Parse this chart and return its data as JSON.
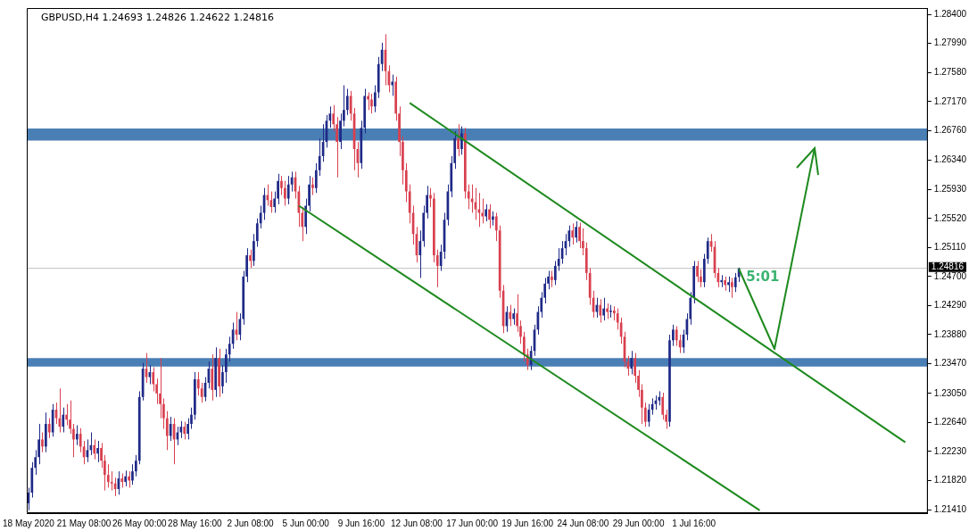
{
  "chart_data": {
    "type": "candlestick",
    "title": "GBPUSD,H4 1.24693 1.24826 1.24622 1.24816",
    "categories": [
      "18 May 2020",
      null,
      null,
      null,
      null,
      null,
      null,
      null,
      null,
      null,
      null,
      null,
      null,
      null,
      null,
      null,
      "21 May 08:00",
      null,
      null,
      null,
      null,
      null,
      null,
      null,
      null,
      null,
      null,
      null,
      null,
      null,
      null,
      null,
      "26 May 00:00",
      null,
      null,
      null,
      null,
      null,
      null,
      null,
      null,
      null,
      null,
      null,
      null,
      null,
      null,
      null,
      "28 May 16:00",
      null,
      null,
      null,
      null,
      null,
      null,
      null,
      null,
      null,
      null,
      null,
      null,
      null,
      null,
      null,
      "2 Jun 08:00",
      null,
      null,
      null,
      null,
      null,
      null,
      null,
      null,
      null,
      null,
      null,
      null,
      null,
      null,
      null,
      "5 Jun 00:00",
      null,
      null,
      null,
      null,
      null,
      null,
      null,
      null,
      null,
      null,
      null,
      null,
      null,
      null,
      null,
      "9 Jun 16:00",
      null,
      null,
      null,
      null,
      null,
      null,
      null,
      null,
      null,
      null,
      null,
      null,
      null,
      null,
      null,
      "12 Jun 08:00",
      null,
      null,
      null,
      null,
      null,
      null,
      null,
      null,
      null,
      null,
      null,
      null,
      null,
      null,
      null,
      "17 Jun 00:00",
      null,
      null,
      null,
      null,
      null,
      null,
      null,
      null,
      null,
      null,
      null,
      null,
      null,
      null,
      null,
      "19 Jun 16:00",
      null,
      null,
      null,
      null,
      null,
      null,
      null,
      null,
      null,
      null,
      null,
      null,
      null,
      null,
      null,
      "24 Jun 08:00",
      null,
      null,
      null,
      null,
      null,
      null,
      null,
      null,
      null,
      null,
      null,
      null,
      null,
      null,
      null,
      "29 Jun 00:00",
      null,
      null,
      null,
      null,
      null,
      null,
      null,
      null,
      null,
      null,
      null,
      null,
      null,
      null,
      null,
      "1 Jul 16:00",
      null,
      null,
      null,
      null,
      null,
      null,
      null,
      null,
      null,
      null,
      null,
      null,
      null,
      null,
      null,
      null,
      null,
      null,
      null,
      null,
      null,
      null,
      null,
      null,
      null,
      null,
      null,
      null,
      null,
      null,
      null,
      null,
      null,
      null,
      null,
      null,
      null,
      null,
      null,
      null,
      null,
      null,
      null,
      null,
      null,
      null,
      null,
      null,
      null,
      null,
      null,
      null,
      null,
      null,
      null,
      null,
      null,
      null,
      null,
      null,
      null,
      null,
      null,
      null,
      null,
      null,
      null
    ],
    "ohlc": [
      [
        1.215,
        1.2172,
        1.214,
        1.2165
      ],
      [
        1.2165,
        1.2208,
        1.2158,
        1.22
      ],
      [
        1.22,
        1.2225,
        1.219,
        1.2215
      ],
      [
        1.2215,
        1.2262,
        1.2205,
        1.224
      ],
      [
        1.224,
        1.225,
        1.2222,
        1.223
      ],
      [
        1.223,
        1.2278,
        1.2222,
        1.2262
      ],
      [
        1.2262,
        1.227,
        1.2242,
        1.225
      ],
      [
        1.225,
        1.229,
        1.2244,
        1.2282
      ],
      [
        1.2282,
        1.2292,
        1.2262,
        1.227
      ],
      [
        1.227,
        1.2312,
        1.225,
        1.2258
      ],
      [
        1.2258,
        1.2285,
        1.225,
        1.2275
      ],
      [
        1.2275,
        1.229,
        1.226,
        1.2268
      ],
      [
        1.2268,
        1.2295,
        1.2248,
        1.2255
      ],
      [
        1.2255,
        1.2262,
        1.2215,
        1.224
      ],
      [
        1.224,
        1.226,
        1.2232,
        1.2248
      ],
      [
        1.2248,
        1.2256,
        1.2222,
        1.223
      ],
      [
        1.223,
        1.2238,
        1.2205,
        1.2215
      ],
      [
        1.2215,
        1.224,
        1.2208,
        1.2225
      ],
      [
        1.2225,
        1.225,
        1.2218,
        1.2232
      ],
      [
        1.2232,
        1.224,
        1.2212,
        1.222
      ],
      [
        1.222,
        1.2238,
        1.2208,
        1.2228
      ],
      [
        1.2228,
        1.2235,
        1.22,
        1.221
      ],
      [
        1.221,
        1.2218,
        1.2168,
        1.219
      ],
      [
        1.219,
        1.2205,
        1.2172,
        1.218
      ],
      [
        1.218,
        1.2195,
        1.2168,
        1.2178
      ],
      [
        1.2178,
        1.2186,
        1.216,
        1.217
      ],
      [
        1.217,
        1.2195,
        1.2162,
        1.2185
      ],
      [
        1.2185,
        1.2192,
        1.2172,
        1.218
      ],
      [
        1.218,
        1.2196,
        1.2174,
        1.2188
      ],
      [
        1.2188,
        1.2195,
        1.2172,
        1.2182
      ],
      [
        1.2182,
        1.2205,
        1.2176,
        1.2195
      ],
      [
        1.2195,
        1.2218,
        1.2188,
        1.221
      ],
      [
        1.221,
        1.2308,
        1.2205,
        1.23
      ],
      [
        1.23,
        1.2348,
        1.2295,
        1.234
      ],
      [
        1.234,
        1.2362,
        1.232,
        1.2328
      ],
      [
        1.2328,
        1.2345,
        1.2318,
        1.2335
      ],
      [
        1.2335,
        1.2342,
        1.2308,
        1.2318
      ],
      [
        1.2318,
        1.2326,
        1.229,
        1.2305
      ],
      [
        1.2305,
        1.2355,
        1.227,
        1.229
      ],
      [
        1.229,
        1.2298,
        1.2255,
        1.227
      ],
      [
        1.227,
        1.228,
        1.2225,
        1.2245
      ],
      [
        1.2245,
        1.2272,
        1.2238,
        1.2262
      ],
      [
        1.2262,
        1.227,
        1.2205,
        1.224
      ],
      [
        1.224,
        1.2258,
        1.2232,
        1.225
      ],
      [
        1.225,
        1.2266,
        1.2242,
        1.2258
      ],
      [
        1.2258,
        1.2265,
        1.224,
        1.2248
      ],
      [
        1.2248,
        1.227,
        1.224,
        1.2262
      ],
      [
        1.2262,
        1.2285,
        1.2255,
        1.2275
      ],
      [
        1.2275,
        1.2335,
        1.2268,
        1.2325
      ],
      [
        1.2325,
        1.2335,
        1.2302,
        1.2312
      ],
      [
        1.2312,
        1.232,
        1.2292,
        1.23
      ],
      [
        1.23,
        1.2328,
        1.2294,
        1.232
      ],
      [
        1.232,
        1.235,
        1.2312,
        1.234
      ],
      [
        1.234,
        1.236,
        1.2295,
        1.231
      ],
      [
        1.231,
        1.237,
        1.23,
        1.2355
      ],
      [
        1.2355,
        1.2368,
        1.23,
        1.2315
      ],
      [
        1.2315,
        1.2345,
        1.2305,
        1.2335
      ],
      [
        1.2335,
        1.2368,
        1.232,
        1.236
      ],
      [
        1.236,
        1.2385,
        1.235,
        1.2375
      ],
      [
        1.2375,
        1.2405,
        1.2368,
        1.2395
      ],
      [
        1.2395,
        1.242,
        1.238,
        1.2388
      ],
      [
        1.2388,
        1.2418,
        1.238,
        1.241
      ],
      [
        1.241,
        1.2478,
        1.2402,
        1.247
      ],
      [
        1.247,
        1.251,
        1.2462,
        1.25
      ],
      [
        1.25,
        1.2508,
        1.2482,
        1.2492
      ],
      [
        1.2492,
        1.253,
        1.2485,
        1.252
      ],
      [
        1.252,
        1.2552,
        1.2512,
        1.2545
      ],
      [
        1.2545,
        1.257,
        1.2538,
        1.256
      ],
      [
        1.256,
        1.2595,
        1.255,
        1.2585
      ],
      [
        1.2585,
        1.26,
        1.257,
        1.2578
      ],
      [
        1.2578,
        1.259,
        1.256,
        1.2568
      ],
      [
        1.2568,
        1.259,
        1.256,
        1.258
      ],
      [
        1.258,
        1.2615,
        1.2572,
        1.2605
      ],
      [
        1.2605,
        1.2612,
        1.2585,
        1.2595
      ],
      [
        1.2595,
        1.2605,
        1.257,
        1.258
      ],
      [
        1.258,
        1.2612,
        1.2572,
        1.26
      ],
      [
        1.26,
        1.2618,
        1.259,
        1.261
      ],
      [
        1.261,
        1.2618,
        1.258,
        1.259
      ],
      [
        1.259,
        1.2598,
        1.254,
        1.256
      ],
      [
        1.256,
        1.2568,
        1.252,
        1.254
      ],
      [
        1.254,
        1.258,
        1.253,
        1.257
      ],
      [
        1.257,
        1.2612,
        1.2562,
        1.26
      ],
      [
        1.26,
        1.261,
        1.2585,
        1.2595
      ],
      [
        1.2595,
        1.263,
        1.2588,
        1.262
      ],
      [
        1.262,
        1.2665,
        1.2612,
        1.264
      ],
      [
        1.264,
        1.2685,
        1.2632,
        1.266
      ],
      [
        1.266,
        1.2698,
        1.2652,
        1.269
      ],
      [
        1.269,
        1.271,
        1.268,
        1.27
      ],
      [
        1.27,
        1.2712,
        1.2675,
        1.2685
      ],
      [
        1.2685,
        1.2695,
        1.261,
        1.266
      ],
      [
        1.266,
        1.27,
        1.265,
        1.269
      ],
      [
        1.269,
        1.274,
        1.2682,
        1.2705
      ],
      [
        1.2705,
        1.2735,
        1.2698,
        1.2725
      ],
      [
        1.2725,
        1.2732,
        1.269,
        1.27
      ],
      [
        1.27,
        1.2708,
        1.262,
        1.265
      ],
      [
        1.265,
        1.266,
        1.261,
        1.263
      ],
      [
        1.263,
        1.269,
        1.2622,
        1.268
      ],
      [
        1.268,
        1.2735,
        1.2672,
        1.2725
      ],
      [
        1.2725,
        1.273,
        1.2705,
        1.272
      ],
      [
        1.272,
        1.2728,
        1.27,
        1.271
      ],
      [
        1.271,
        1.274,
        1.2702,
        1.273
      ],
      [
        1.273,
        1.278,
        1.2722,
        1.277
      ],
      [
        1.277,
        1.28,
        1.276,
        1.279
      ],
      [
        1.279,
        1.2812,
        1.274,
        1.276
      ],
      [
        1.276,
        1.2768,
        1.273,
        1.274
      ],
      [
        1.274,
        1.2755,
        1.2725,
        1.2745
      ],
      [
        1.2745,
        1.2752,
        1.269,
        1.27
      ],
      [
        1.27,
        1.271,
        1.264,
        1.266
      ],
      [
        1.266,
        1.2668,
        1.26,
        1.262
      ],
      [
        1.262,
        1.263,
        1.2575,
        1.259
      ],
      [
        1.259,
        1.26,
        1.2545,
        1.256
      ],
      [
        1.256,
        1.257,
        1.2515,
        1.253
      ],
      [
        1.253,
        1.254,
        1.249,
        1.25
      ],
      [
        1.25,
        1.2535,
        1.2468,
        1.252
      ],
      [
        1.252,
        1.257,
        1.2512,
        1.256
      ],
      [
        1.256,
        1.2598,
        1.2552,
        1.2585
      ],
      [
        1.2585,
        1.2595,
        1.2568,
        1.258
      ],
      [
        1.258,
        1.2588,
        1.249,
        1.25
      ],
      [
        1.25,
        1.2508,
        1.2455,
        1.2485
      ],
      [
        1.2485,
        1.2515,
        1.2478,
        1.2505
      ],
      [
        1.2505,
        1.256,
        1.2495,
        1.255
      ],
      [
        1.255,
        1.26,
        1.2542,
        1.259
      ],
      [
        1.259,
        1.264,
        1.2582,
        1.263
      ],
      [
        1.263,
        1.2675,
        1.2622,
        1.2665
      ],
      [
        1.2665,
        1.2685,
        1.264,
        1.265
      ],
      [
        1.265,
        1.2682,
        1.2642,
        1.2672
      ],
      [
        1.2672,
        1.268,
        1.258,
        1.259
      ],
      [
        1.259,
        1.26,
        1.2565,
        1.258
      ],
      [
        1.258,
        1.26,
        1.256,
        1.2575
      ],
      [
        1.2575,
        1.2595,
        1.255,
        1.2565
      ],
      [
        1.2565,
        1.2588,
        1.254,
        1.256
      ],
      [
        1.256,
        1.258,
        1.2545,
        1.2555
      ],
      [
        1.2555,
        1.2572,
        1.2548,
        1.2565
      ],
      [
        1.2565,
        1.2572,
        1.2538,
        1.255
      ],
      [
        1.255,
        1.2562,
        1.2542,
        1.2555
      ],
      [
        1.2555,
        1.256,
        1.252,
        1.2535
      ],
      [
        1.2535,
        1.2542,
        1.244,
        1.245
      ],
      [
        1.245,
        1.2458,
        1.239,
        1.24
      ],
      [
        1.24,
        1.2428,
        1.2392,
        1.242
      ],
      [
        1.242,
        1.243,
        1.24,
        1.241
      ],
      [
        1.241,
        1.2425,
        1.2402,
        1.2418
      ],
      [
        1.2418,
        1.2445,
        1.2392,
        1.24
      ],
      [
        1.24,
        1.2408,
        1.2375,
        1.2385
      ],
      [
        1.2385,
        1.2392,
        1.235,
        1.236
      ],
      [
        1.236,
        1.2368,
        1.2338,
        1.2345
      ],
      [
        1.2345,
        1.2372,
        1.2338,
        1.2365
      ],
      [
        1.2365,
        1.2402,
        1.2358,
        1.2395
      ],
      [
        1.2395,
        1.2428,
        1.2388,
        1.242
      ],
      [
        1.242,
        1.2448,
        1.2412,
        1.244
      ],
      [
        1.244,
        1.2468,
        1.2432,
        1.246
      ],
      [
        1.246,
        1.2478,
        1.2452,
        1.247
      ],
      [
        1.247,
        1.2478,
        1.2455,
        1.2465
      ],
      [
        1.2465,
        1.2492,
        1.2458,
        1.2485
      ],
      [
        1.2485,
        1.251,
        1.2478,
        1.2495
      ],
      [
        1.2495,
        1.252,
        1.2488,
        1.251
      ],
      [
        1.251,
        1.253,
        1.25,
        1.252
      ],
      [
        1.252,
        1.2542,
        1.2512,
        1.2535
      ],
      [
        1.2535,
        1.2545,
        1.2515,
        1.2525
      ],
      [
        1.2525,
        1.2548,
        1.2518,
        1.254
      ],
      [
        1.254,
        1.2546,
        1.251,
        1.252
      ],
      [
        1.252,
        1.2538,
        1.25,
        1.251
      ],
      [
        1.251,
        1.2518,
        1.2465,
        1.2475
      ],
      [
        1.2475,
        1.2482,
        1.243,
        1.244
      ],
      [
        1.244,
        1.245,
        1.2412,
        1.242
      ],
      [
        1.242,
        1.244,
        1.2412,
        1.243
      ],
      [
        1.243,
        1.2438,
        1.2405,
        1.2415
      ],
      [
        1.2415,
        1.244,
        1.2408,
        1.2425
      ],
      [
        1.2425,
        1.2432,
        1.241,
        1.242
      ],
      [
        1.242,
        1.243,
        1.2412,
        1.2422
      ],
      [
        1.2422,
        1.2428,
        1.2408,
        1.2418
      ],
      [
        1.2418,
        1.2425,
        1.2395,
        1.2405
      ],
      [
        1.2405,
        1.2412,
        1.2375,
        1.2385
      ],
      [
        1.2385,
        1.2392,
        1.2342,
        1.235
      ],
      [
        1.235,
        1.2358,
        1.233,
        1.234
      ],
      [
        1.234,
        1.2365,
        1.2332,
        1.2355
      ],
      [
        1.2355,
        1.2362,
        1.232,
        1.233
      ],
      [
        1.233,
        1.2338,
        1.23,
        1.231
      ],
      [
        1.231,
        1.2318,
        1.2262,
        1.2285
      ],
      [
        1.2285,
        1.2292,
        1.2258,
        1.2265
      ],
      [
        1.2265,
        1.229,
        1.2258,
        1.2282
      ],
      [
        1.2282,
        1.2298,
        1.2275,
        1.229
      ],
      [
        1.229,
        1.2302,
        1.2282,
        1.2295
      ],
      [
        1.2295,
        1.2308,
        1.2288,
        1.23
      ],
      [
        1.23,
        1.2306,
        1.2268,
        1.2275
      ],
      [
        1.2275,
        1.2282,
        1.2255,
        1.2265
      ],
      [
        1.2265,
        1.2388,
        1.2258,
        1.238
      ],
      [
        1.238,
        1.2402,
        1.2372,
        1.2395
      ],
      [
        1.2395,
        1.24,
        1.2372,
        1.238
      ],
      [
        1.238,
        1.2388,
        1.2362,
        1.237
      ],
      [
        1.237,
        1.2395,
        1.2362,
        1.2388
      ],
      [
        1.2388,
        1.2418,
        1.238,
        1.241
      ],
      [
        1.241,
        1.2448,
        1.2402,
        1.244
      ],
      [
        1.244,
        1.2492,
        1.2432,
        1.2485
      ],
      [
        1.2485,
        1.2492,
        1.2462,
        1.247
      ],
      [
        1.247,
        1.248,
        1.2455,
        1.2462
      ],
      [
        1.2462,
        1.2502,
        1.2455,
        1.2495
      ],
      [
        1.2495,
        1.2525,
        1.2488,
        1.252
      ],
      [
        1.252,
        1.253,
        1.2505,
        1.2512
      ],
      [
        1.2512,
        1.252,
        1.2468,
        1.2475
      ],
      [
        1.2475,
        1.2482,
        1.2455,
        1.2462
      ],
      [
        1.2462,
        1.2472,
        1.2455,
        1.2465
      ],
      [
        1.2465,
        1.247,
        1.245,
        1.2458
      ],
      [
        1.2458,
        1.247,
        1.2448,
        1.2462
      ],
      [
        1.2462,
        1.2468,
        1.244,
        1.2455
      ],
      [
        1.2455,
        1.2475,
        1.2448,
        1.2469
      ],
      [
        1.24693,
        1.24826,
        1.24622,
        1.24816
      ],
      null,
      null,
      null,
      null,
      null,
      null,
      null,
      null,
      null,
      null,
      null,
      null,
      null,
      null,
      null,
      null,
      null,
      null,
      null,
      null,
      null,
      null,
      null,
      null,
      null,
      null,
      null,
      null,
      null,
      null,
      null,
      null,
      null,
      null,
      null,
      null,
      null,
      null,
      null,
      null,
      null,
      null,
      null,
      null,
      null,
      null,
      null,
      null,
      null,
      null,
      null,
      null,
      null,
      null
    ],
    "series": [
      {
        "type": "line",
        "color": "#1e8a1e",
        "values": [
          null,
          null,
          null,
          null,
          null,
          null,
          null,
          null,
          null,
          null,
          null,
          null,
          null,
          null,
          null,
          null,
          null,
          null,
          null,
          null,
          null,
          null,
          null,
          null,
          null,
          null,
          null,
          null,
          null,
          null,
          null,
          null,
          null,
          null,
          null,
          null,
          null,
          null,
          null,
          null,
          null,
          null,
          null,
          null,
          null,
          null,
          null,
          null,
          null,
          null,
          null,
          null,
          null,
          null,
          null,
          null,
          null,
          null,
          null,
          null,
          null,
          null,
          null,
          null,
          null,
          null,
          null,
          null,
          null,
          null,
          null,
          null,
          null,
          null,
          null,
          null,
          null,
          null,
          null,
          null,
          null,
          null,
          null,
          null,
          null,
          null,
          null,
          null,
          null,
          null,
          null,
          null,
          null,
          null,
          null,
          null,
          null,
          null,
          null,
          null,
          null,
          null,
          null,
          null,
          null,
          null,
          null,
          null,
          null,
          null,
          1.2715,
          null,
          null,
          null,
          null,
          null,
          null,
          null,
          null,
          null,
          null,
          null,
          null,
          null,
          null,
          null,
          null,
          null,
          null,
          null,
          null,
          null,
          null,
          null,
          null,
          null,
          null,
          null,
          null,
          null,
          null,
          null,
          null,
          null,
          null,
          null,
          null,
          null,
          null,
          null,
          null,
          null,
          null,
          null,
          null,
          null,
          null,
          null,
          null,
          null,
          null,
          null,
          null,
          null,
          null,
          null,
          null,
          null,
          null,
          null,
          null,
          null,
          null,
          null,
          null,
          null,
          null,
          null,
          null,
          null,
          null,
          null,
          null,
          null,
          null,
          null,
          null,
          null,
          null,
          null,
          null,
          null,
          null,
          null,
          null,
          null,
          null,
          null,
          null,
          null,
          null,
          null,
          null,
          null,
          null,
          null,
          null,
          null,
          null,
          null,
          null,
          null,
          null,
          null,
          null,
          null,
          null,
          null,
          null,
          null,
          null,
          null,
          null,
          null,
          null,
          null,
          null,
          null,
          null,
          null,
          null,
          null,
          null,
          null,
          null,
          null,
          null,
          null,
          null,
          null,
          null,
          null,
          null,
          null,
          null,
          null,
          null,
          null,
          null,
          null,
          null,
          null,
          null,
          1.2236,
          null,
          null,
          null,
          null,
          null,
          null
        ]
      },
      {
        "type": "line",
        "color": "#1e8a1e",
        "values": [
          null,
          null,
          null,
          null,
          null,
          null,
          null,
          null,
          null,
          null,
          null,
          null,
          null,
          null,
          null,
          null,
          null,
          null,
          null,
          null,
          null,
          null,
          null,
          null,
          null,
          null,
          null,
          null,
          null,
          null,
          null,
          null,
          null,
          null,
          null,
          null,
          null,
          null,
          null,
          null,
          null,
          null,
          null,
          null,
          null,
          null,
          null,
          null,
          null,
          null,
          null,
          null,
          null,
          null,
          null,
          null,
          null,
          null,
          null,
          null,
          null,
          null,
          null,
          null,
          null,
          null,
          null,
          null,
          null,
          null,
          null,
          null,
          null,
          null,
          null,
          null,
          null,
          null,
          1.257,
          null,
          null,
          null,
          null,
          null,
          null,
          null,
          null,
          null,
          null,
          null,
          null,
          null,
          null,
          null,
          null,
          null,
          null,
          null,
          null,
          null,
          null,
          null,
          null,
          null,
          null,
          null,
          null,
          null,
          null,
          null,
          null,
          null,
          null,
          null,
          null,
          null,
          null,
          null,
          null,
          null,
          null,
          null,
          null,
          null,
          null,
          null,
          null,
          null,
          null,
          null,
          null,
          null,
          null,
          null,
          null,
          null,
          null,
          null,
          null,
          null,
          null,
          null,
          null,
          null,
          null,
          null,
          null,
          null,
          null,
          null,
          null,
          null,
          null,
          null,
          null,
          null,
          null,
          null,
          null,
          null,
          null,
          null,
          null,
          null,
          null,
          null,
          null,
          null,
          null,
          null,
          null,
          null,
          null,
          null,
          null,
          null,
          null,
          null,
          null,
          null,
          null,
          null,
          null,
          null,
          null,
          null,
          null,
          null,
          null,
          null,
          null,
          null,
          null,
          null,
          null,
          null,
          null,
          null,
          null,
          null,
          null,
          null,
          null,
          null,
          null,
          null,
          null,
          null,
          null,
          null,
          null,
          1.214,
          null,
          null,
          null,
          null,
          null,
          null,
          null,
          null,
          null,
          null,
          null,
          null,
          null,
          null,
          null,
          null,
          null,
          null,
          null,
          null,
          null,
          null,
          null,
          null,
          null,
          null,
          null,
          null,
          null,
          null,
          null,
          null,
          null,
          null,
          null,
          null,
          null,
          null,
          null,
          null,
          null,
          null,
          null,
          null,
          null,
          null,
          null,
          null
        ]
      }
    ],
    "bands": [
      {
        "axis": "y",
        "from": 1.2662,
        "to": 1.2679,
        "color": "#4a7fb5"
      },
      {
        "axis": "y",
        "from": 1.2343,
        "to": 1.2355,
        "color": "#4a7fb5"
      }
    ],
    "ref_lines": [
      {
        "axis": "y",
        "value": 1.24816,
        "label": "1.24816",
        "color": "#c0c0c0"
      }
    ],
    "annotations": [
      "5:01"
    ],
    "ylim": [
      1.2136,
      1.2849
    ],
    "yticks": [
      {
        "value": 1.2141,
        "label": "1.21410"
      },
      {
        "value": 1.2182,
        "label": "1.21820"
      },
      {
        "value": 1.2223,
        "label": "1.22230"
      },
      {
        "value": 1.2264,
        "label": "1.22640"
      },
      {
        "value": 1.2305,
        "label": "1.23050"
      },
      {
        "value": 1.2347,
        "label": "1.23470"
      },
      {
        "value": 1.2388,
        "label": "1.23880"
      },
      {
        "value": 1.2429,
        "label": "1.24290"
      },
      {
        "value": 1.247,
        "label": "1.24700"
      },
      {
        "value": 1.2511,
        "label": "1.25110"
      },
      {
        "value": 1.2552,
        "label": "1.25520"
      },
      {
        "value": 1.2593,
        "label": "1.25930"
      },
      {
        "value": 1.2634,
        "label": "1.26340"
      },
      {
        "value": 1.2676,
        "label": "1.26760"
      },
      {
        "value": 1.2717,
        "label": "1.27170"
      },
      {
        "value": 1.2758,
        "label": "1.27580"
      },
      {
        "value": 1.2799,
        "label": "1.27990"
      },
      {
        "value": 1.284,
        "label": "1.28400"
      }
    ],
    "grid": false,
    "legend": false
  }
}
